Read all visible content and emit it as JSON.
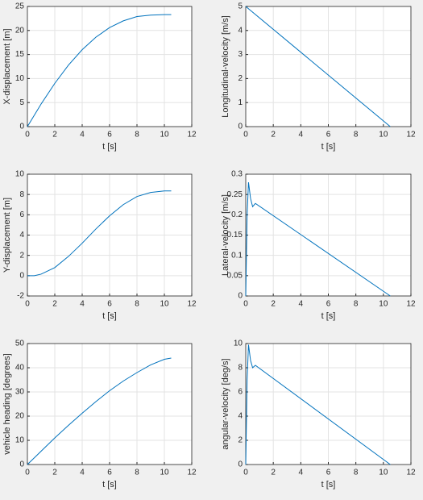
{
  "chart_data": [
    {
      "type": "line",
      "xlabel": "t [s]",
      "ylabel": "X-displacement [m]",
      "color": "#0072bd",
      "grid": true,
      "x": [
        0,
        1,
        2,
        3,
        4,
        5,
        6,
        7,
        8,
        9,
        10,
        10.5
      ],
      "values": [
        0,
        4.7,
        9,
        12.8,
        16,
        18.6,
        20.6,
        22,
        22.9,
        23.2,
        23.3,
        23.3
      ],
      "xlim": [
        0,
        12
      ],
      "xticks": [
        0,
        2,
        4,
        6,
        8,
        10,
        12
      ],
      "ylim": [
        0,
        25
      ],
      "yticks": [
        0,
        5,
        10,
        15,
        20,
        25
      ]
    },
    {
      "type": "line",
      "xlabel": "t [s]",
      "ylabel": "Longitudinal-velocity [m/s]",
      "color": "#0072bd",
      "grid": true,
      "x": [
        0,
        10.5
      ],
      "values": [
        5,
        0
      ],
      "xlim": [
        0,
        12
      ],
      "xticks": [
        0,
        2,
        4,
        6,
        8,
        10,
        12
      ],
      "ylim": [
        0,
        5
      ],
      "yticks": [
        0,
        1,
        2,
        3,
        4,
        5
      ]
    },
    {
      "type": "line",
      "xlabel": "t [s]",
      "ylabel": "Y-displacement [m]",
      "color": "#0072bd",
      "grid": true,
      "x": [
        0,
        0.5,
        1,
        2,
        3,
        4,
        5,
        6,
        7,
        8,
        9,
        10,
        10.5
      ],
      "values": [
        0,
        0,
        0.15,
        0.8,
        1.9,
        3.2,
        4.6,
        5.9,
        7,
        7.8,
        8.2,
        8.35,
        8.35
      ],
      "xlim": [
        0,
        12
      ],
      "xticks": [
        0,
        2,
        4,
        6,
        8,
        10,
        12
      ],
      "ylim": [
        -2,
        10
      ],
      "yticks": [
        -2,
        0,
        2,
        4,
        6,
        8,
        10
      ]
    },
    {
      "type": "line",
      "xlabel": "t [s]",
      "ylabel": "Lateral-velocity [m/s]",
      "color": "#0072bd",
      "grid": true,
      "x": [
        0,
        0.1,
        0.2,
        0.35,
        0.5,
        0.7,
        10.5
      ],
      "values": [
        0,
        0.2,
        0.28,
        0.24,
        0.22,
        0.228,
        0
      ],
      "xlim": [
        0,
        12
      ],
      "xticks": [
        0,
        2,
        4,
        6,
        8,
        10,
        12
      ],
      "ylim": [
        0,
        0.3
      ],
      "yticks": [
        0,
        0.05,
        0.1,
        0.15,
        0.2,
        0.25,
        0.3
      ]
    },
    {
      "type": "line",
      "xlabel": "t [s]",
      "ylabel": "vehicle heading [degrees]",
      "color": "#0072bd",
      "grid": true,
      "x": [
        0,
        1,
        2,
        3,
        4,
        5,
        6,
        7,
        8,
        9,
        10,
        10.5
      ],
      "values": [
        0,
        5.5,
        11,
        16.2,
        21.2,
        26,
        30.5,
        34.5,
        38,
        41.2,
        43.5,
        44
      ],
      "xlim": [
        0,
        12
      ],
      "xticks": [
        0,
        2,
        4,
        6,
        8,
        10,
        12
      ],
      "ylim": [
        0,
        50
      ],
      "yticks": [
        0,
        10,
        20,
        30,
        40,
        50
      ]
    },
    {
      "type": "line",
      "xlabel": "t [s]",
      "ylabel": "angular-velocity [deg/s]",
      "color": "#0072bd",
      "grid": true,
      "x": [
        0,
        0.1,
        0.2,
        0.35,
        0.5,
        0.7,
        10.5
      ],
      "values": [
        0,
        7,
        9.9,
        8.6,
        8,
        8.2,
        0
      ],
      "xlim": [
        0,
        12
      ],
      "xticks": [
        0,
        2,
        4,
        6,
        8,
        10,
        12
      ],
      "ylim": [
        0,
        10
      ],
      "yticks": [
        0,
        2,
        4,
        6,
        8,
        10
      ]
    }
  ]
}
